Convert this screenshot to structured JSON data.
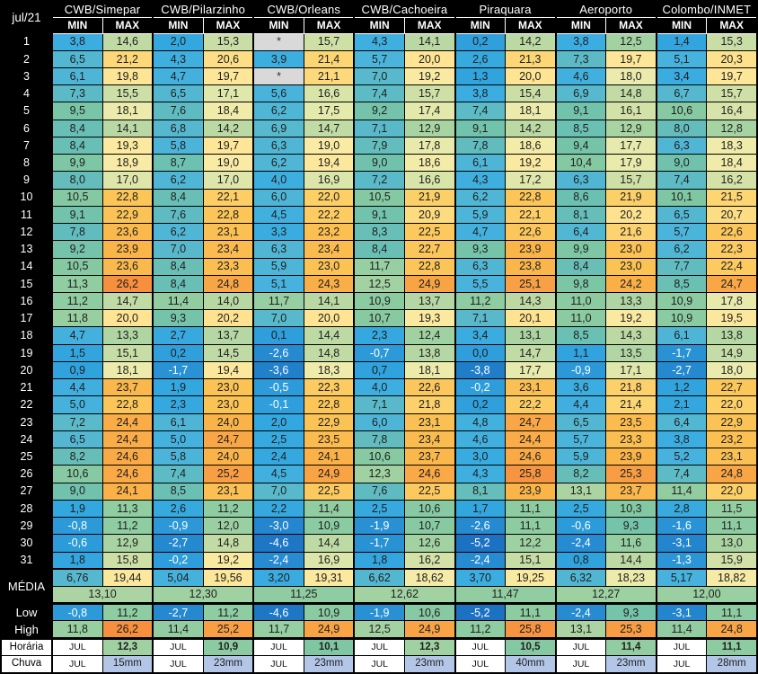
{
  "colors": {
    "header_bg": "#000000",
    "header_text": "#ffffff",
    "missing_bg": "#d9d9d9",
    "rain_bg": "#b4c6e7",
    "month_cell_bg": "#ffffff",
    "negative_text": "#ffffff",
    "value_text": "#212121",
    "scale_cold": "#1b6abe",
    "scale_mid": "#9ad0a1",
    "scale_hot": "#f58538"
  },
  "chart_data": {
    "type": "table",
    "subtype": "temperature-heatmap",
    "corner_label": "jul/21",
    "stations": [
      "CWB/Simepar",
      "CWB/Pilarzinho",
      "CWB/Orleans",
      "CWB/Cachoeira",
      "Piraquara",
      "Aeroporto",
      "Colombo/INMET"
    ],
    "columns": [
      "MIN",
      "MAX"
    ],
    "missing_marker": "*",
    "days": [
      {
        "day": "1",
        "cells": [
          "3,8",
          "14,6",
          "2,0",
          "15,3",
          "*",
          "15,7",
          "4,3",
          "14,1",
          "0,2",
          "14,2",
          "3,8",
          "12,5",
          "1,4",
          "15,3"
        ]
      },
      {
        "day": "2",
        "cells": [
          "6,5",
          "21,2",
          "4,3",
          "20,6",
          "3,9",
          "21,4",
          "5,7",
          "20,0",
          "2,6",
          "21,3",
          "7,3",
          "19,7",
          "5,1",
          "20,3"
        ]
      },
      {
        "day": "3",
        "cells": [
          "6,1",
          "19,8",
          "4,7",
          "19,7",
          "*",
          "21,1",
          "7,0",
          "19,2",
          "1,3",
          "20,0",
          "4,6",
          "18,0",
          "3,4",
          "19,7"
        ]
      },
      {
        "day": "4",
        "cells": [
          "7,3",
          "15,5",
          "6,5",
          "17,1",
          "5,6",
          "16,6",
          "7,4",
          "15,7",
          "3,8",
          "15,4",
          "6,9",
          "14,8",
          "6,7",
          "15,7"
        ]
      },
      {
        "day": "5",
        "cells": [
          "9,5",
          "18,1",
          "7,6",
          "18,4",
          "6,2",
          "17,5",
          "9,2",
          "17,4",
          "7,4",
          "18,1",
          "9,1",
          "16,1",
          "10,6",
          "16,4"
        ]
      },
      {
        "day": "6",
        "cells": [
          "8,4",
          "14,1",
          "6,8",
          "14,2",
          "6,9",
          "14,7",
          "7,1",
          "12,9",
          "9,1",
          "14,2",
          "8,5",
          "12,9",
          "8,0",
          "12,8"
        ]
      },
      {
        "day": "7",
        "cells": [
          "8,4",
          "19,3",
          "5,8",
          "19,7",
          "6,3",
          "19,0",
          "7,9",
          "17,8",
          "7,8",
          "18,6",
          "9,4",
          "17,7",
          "6,3",
          "18,3"
        ]
      },
      {
        "day": "8",
        "cells": [
          "9,9",
          "18,9",
          "8,7",
          "19,0",
          "6,2",
          "19,4",
          "9,0",
          "18,6",
          "6,1",
          "19,2",
          "10,4",
          "17,9",
          "9,0",
          "18,4"
        ]
      },
      {
        "day": "9",
        "cells": [
          "8,0",
          "17,0",
          "6,2",
          "17,0",
          "4,0",
          "16,9",
          "7,2",
          "16,6",
          "4,3",
          "17,2",
          "6,3",
          "15,7",
          "7,4",
          "16,2"
        ]
      },
      {
        "day": "10",
        "cells": [
          "10,5",
          "22,8",
          "8,4",
          "22,1",
          "6,0",
          "22,0",
          "10,5",
          "21,9",
          "6,2",
          "22,8",
          "8,6",
          "21,9",
          "10,1",
          "21,5"
        ]
      },
      {
        "day": "11",
        "cells": [
          "9,1",
          "22,9",
          "7,6",
          "22,8",
          "4,5",
          "22,2",
          "9,1",
          "20,9",
          "5,9",
          "22,1",
          "8,1",
          "20,2",
          "6,5",
          "20,7"
        ]
      },
      {
        "day": "12",
        "cells": [
          "7,8",
          "23,6",
          "6,2",
          "23,1",
          "3,3",
          "23,2",
          "8,3",
          "22,5",
          "4,7",
          "22,6",
          "6,4",
          "21,6",
          "5,7",
          "22,6"
        ]
      },
      {
        "day": "13",
        "cells": [
          "9,2",
          "23,9",
          "7,0",
          "23,4",
          "6,3",
          "23,4",
          "8,4",
          "22,7",
          "9,3",
          "23,9",
          "9,9",
          "23,0",
          "6,2",
          "22,3"
        ]
      },
      {
        "day": "14",
        "cells": [
          "10,5",
          "23,6",
          "8,4",
          "23,3",
          "5,9",
          "23,0",
          "11,7",
          "22,8",
          "6,3",
          "23,8",
          "8,4",
          "23,0",
          "7,7",
          "22,4"
        ]
      },
      {
        "day": "15",
        "cells": [
          "11,3",
          "26,2",
          "8,4",
          "24,8",
          "5,1",
          "24,3",
          "12,5",
          "24,9",
          "5,5",
          "25,1",
          "9,8",
          "24,2",
          "8,5",
          "24,7"
        ]
      },
      {
        "day": "16",
        "cells": [
          "11,2",
          "14,7",
          "11,4",
          "14,0",
          "11,7",
          "14,1",
          "10,9",
          "13,7",
          "11,2",
          "14,3",
          "11,0",
          "13,3",
          "10,9",
          "17,8"
        ]
      },
      {
        "day": "17",
        "cells": [
          "11,8",
          "20,0",
          "9,3",
          "20,2",
          "7,0",
          "20,0",
          "10,7",
          "19,3",
          "7,1",
          "20,1",
          "11,0",
          "19,2",
          "10,9",
          "19,5"
        ]
      },
      {
        "day": "18",
        "cells": [
          "4,7",
          "13,3",
          "2,7",
          "13,7",
          "0,1",
          "14,4",
          "2,3",
          "12,4",
          "3,4",
          "13,1",
          "8,5",
          "14,3",
          "6,1",
          "13,8"
        ]
      },
      {
        "day": "19",
        "cells": [
          "1,5",
          "15,1",
          "0,2",
          "14,5",
          "-2,6",
          "14,8",
          "-0,7",
          "13,8",
          "0,0",
          "14,7",
          "1,1",
          "13,5",
          "-1,7",
          "14,9"
        ]
      },
      {
        "day": "20",
        "cells": [
          "0,9",
          "18,1",
          "-1,7",
          "19,4",
          "-3,6",
          "18,3",
          "0,7",
          "18,1",
          "-3,8",
          "17,7",
          "-0,9",
          "17,1",
          "-2,7",
          "18,0"
        ]
      },
      {
        "day": "21",
        "cells": [
          "4,4",
          "23,7",
          "1,9",
          "23,0",
          "-0,5",
          "22,3",
          "4,0",
          "22,6",
          "-0,2",
          "23,1",
          "3,6",
          "21,8",
          "1,2",
          "22,7"
        ]
      },
      {
        "day": "22",
        "cells": [
          "5,0",
          "22,8",
          "2,3",
          "23,0",
          "-0,1",
          "22,8",
          "7,1",
          "21,8",
          "0,2",
          "22,2",
          "4,4",
          "21,4",
          "2,1",
          "22,0"
        ]
      },
      {
        "day": "23",
        "cells": [
          "7,2",
          "24,4",
          "6,1",
          "24,0",
          "2,0",
          "22,9",
          "6,0",
          "23,1",
          "4,8",
          "24,7",
          "6,5",
          "23,5",
          "6,4",
          "22,9"
        ]
      },
      {
        "day": "24",
        "cells": [
          "6,5",
          "24,4",
          "5,0",
          "24,7",
          "2,5",
          "23,5",
          "7,8",
          "23,4",
          "4,6",
          "24,4",
          "5,7",
          "23,3",
          "3,8",
          "23,2"
        ]
      },
      {
        "day": "25",
        "cells": [
          "8,2",
          "24,6",
          "5,8",
          "24,0",
          "2,4",
          "24,1",
          "10,6",
          "23,7",
          "3,0",
          "24,6",
          "5,9",
          "23,9",
          "5,2",
          "23,1"
        ]
      },
      {
        "day": "26",
        "cells": [
          "10,6",
          "24,6",
          "7,4",
          "25,2",
          "4,5",
          "24,9",
          "12,3",
          "24,6",
          "4,3",
          "25,8",
          "8,2",
          "25,3",
          "7,4",
          "24,8"
        ]
      },
      {
        "day": "27",
        "cells": [
          "9,0",
          "24,1",
          "8,5",
          "23,1",
          "7,0",
          "22,5",
          "7,6",
          "22,5",
          "8,1",
          "23,9",
          "13,1",
          "23,7",
          "11,4",
          "22,0"
        ]
      },
      {
        "day": "28",
        "cells": [
          "1,9",
          "11,3",
          "2,6",
          "11,2",
          "2,2",
          "11,4",
          "2,5",
          "10,6",
          "1,7",
          "11,1",
          "2,5",
          "10,3",
          "2,8",
          "11,5"
        ]
      },
      {
        "day": "29",
        "cells": [
          "-0,8",
          "11,2",
          "-0,9",
          "12,0",
          "-3,0",
          "10,9",
          "-1,9",
          "10,7",
          "-2,6",
          "11,1",
          "-0,6",
          "9,3",
          "-1,6",
          "11,1"
        ]
      },
      {
        "day": "30",
        "cells": [
          "-0,6",
          "12,9",
          "-2,7",
          "14,8",
          "-4,6",
          "14,4",
          "-1,7",
          "12,6",
          "-5,2",
          "12,2",
          "-2,4",
          "11,6",
          "-3,1",
          "13,0"
        ]
      },
      {
        "day": "31",
        "cells": [
          "1,8",
          "15,8",
          "-0,2",
          "19,2",
          "-2,4",
          "16,9",
          "1,8",
          "16,2",
          "-2,4",
          "15,1",
          "0,8",
          "14,4",
          "-1,3",
          "15,9"
        ]
      }
    ],
    "media": {
      "label": "MÉDIA",
      "cells": [
        "6,76",
        "19,44",
        "5,04",
        "19,56",
        "3,20",
        "19,31",
        "6,62",
        "18,62",
        "3,70",
        "19,25",
        "6,32",
        "18,23",
        "5,17",
        "18,82"
      ]
    },
    "overall_mean": [
      "13,10",
      "12,30",
      "11,25",
      "12,62",
      "11,47",
      "12,27",
      "12,00"
    ],
    "low": {
      "label": "Low",
      "cells": [
        "-0,8",
        "11,2",
        "-2,7",
        "11,2",
        "-4,6",
        "10,9",
        "-1,9",
        "10,6",
        "-5,2",
        "11,1",
        "-2,4",
        "9,3",
        "-3,1",
        "11,1"
      ]
    },
    "high": {
      "label": "High",
      "cells": [
        "11,8",
        "26,2",
        "11,4",
        "25,2",
        "11,7",
        "24,9",
        "12,5",
        "24,9",
        "11,2",
        "25,8",
        "13,1",
        "25,3",
        "11,4",
        "24,8"
      ]
    },
    "horaria": {
      "label": "Horária",
      "cells": [
        "JUL",
        "12,3",
        "JUL",
        "10,9",
        "JUL",
        "10,1",
        "JUL",
        "12,3",
        "JUL",
        "10,5",
        "JUL",
        "11,4",
        "JUL",
        "11,1"
      ]
    },
    "chuva": {
      "label": "Chuva",
      "cells": [
        "JUL",
        "15mm",
        "JUL",
        "23mm",
        "JUL",
        "23mm",
        "JUL",
        "23mm",
        "JUL",
        "40mm",
        "JUL",
        "23mm",
        "JUL",
        "28mm"
      ]
    }
  }
}
